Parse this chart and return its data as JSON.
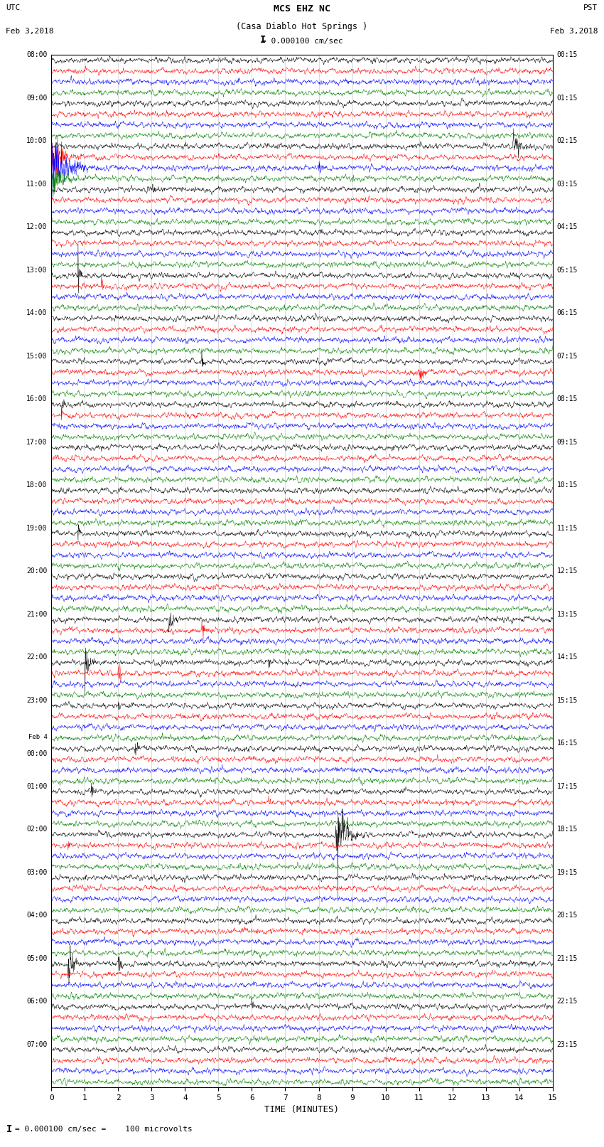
{
  "title_line1": "MCS EHZ NC",
  "title_line2": "(Casa Diablo Hot Springs )",
  "scale_label": "= 0.000100 cm/sec",
  "scale_bar": "I",
  "left_label_top": "UTC",
  "left_label_date": "Feb 3,2018",
  "right_label_top": "PST",
  "right_label_date": "Feb 3,2018",
  "bottom_label": "TIME (MINUTES)",
  "footnote": "= 0.000100 cm/sec =    100 microvolts",
  "footnote_bar": "I",
  "utc_times": [
    "08:00",
    "",
    "",
    "",
    "09:00",
    "",
    "",
    "",
    "10:00",
    "",
    "",
    "",
    "11:00",
    "",
    "",
    "",
    "12:00",
    "",
    "",
    "",
    "13:00",
    "",
    "",
    "",
    "14:00",
    "",
    "",
    "",
    "15:00",
    "",
    "",
    "",
    "16:00",
    "",
    "",
    "",
    "17:00",
    "",
    "",
    "",
    "18:00",
    "",
    "",
    "",
    "19:00",
    "",
    "",
    "",
    "20:00",
    "",
    "",
    "",
    "21:00",
    "",
    "",
    "",
    "22:00",
    "",
    "",
    "",
    "23:00",
    "",
    "",
    "",
    "Feb 4",
    "00:00",
    "",
    "",
    "01:00",
    "",
    "",
    "",
    "02:00",
    "",
    "",
    "",
    "03:00",
    "",
    "",
    "",
    "04:00",
    "",
    "",
    "",
    "05:00",
    "",
    "",
    "",
    "06:00",
    "",
    "",
    "",
    "07:00",
    "",
    "",
    ""
  ],
  "pst_times": [
    "00:15",
    "",
    "",
    "",
    "01:15",
    "",
    "",
    "",
    "02:15",
    "",
    "",
    "",
    "03:15",
    "",
    "",
    "",
    "04:15",
    "",
    "",
    "",
    "05:15",
    "",
    "",
    "",
    "06:15",
    "",
    "",
    "",
    "07:15",
    "",
    "",
    "",
    "08:15",
    "",
    "",
    "",
    "09:15",
    "",
    "",
    "",
    "10:15",
    "",
    "",
    "",
    "11:15",
    "",
    "",
    "",
    "12:15",
    "",
    "",
    "",
    "13:15",
    "",
    "",
    "",
    "14:15",
    "",
    "",
    "",
    "15:15",
    "",
    "",
    "",
    "16:15",
    "",
    "",
    "",
    "17:15",
    "",
    "",
    "",
    "18:15",
    "",
    "",
    "",
    "19:15",
    "",
    "",
    "",
    "20:15",
    "",
    "",
    "",
    "21:15",
    "",
    "",
    "",
    "22:15",
    "",
    "",
    "",
    "23:15",
    "",
    "",
    ""
  ],
  "colors": [
    "black",
    "red",
    "blue",
    "green"
  ],
  "n_rows": 96,
  "n_cols": 1800,
  "x_ticks": [
    0,
    1,
    2,
    3,
    4,
    5,
    6,
    7,
    8,
    9,
    10,
    11,
    12,
    13,
    14,
    15
  ],
  "x_min": 0,
  "x_max": 15,
  "seed": 42,
  "base_noise": 0.3,
  "trace_scale": 0.42,
  "lw": 0.35
}
